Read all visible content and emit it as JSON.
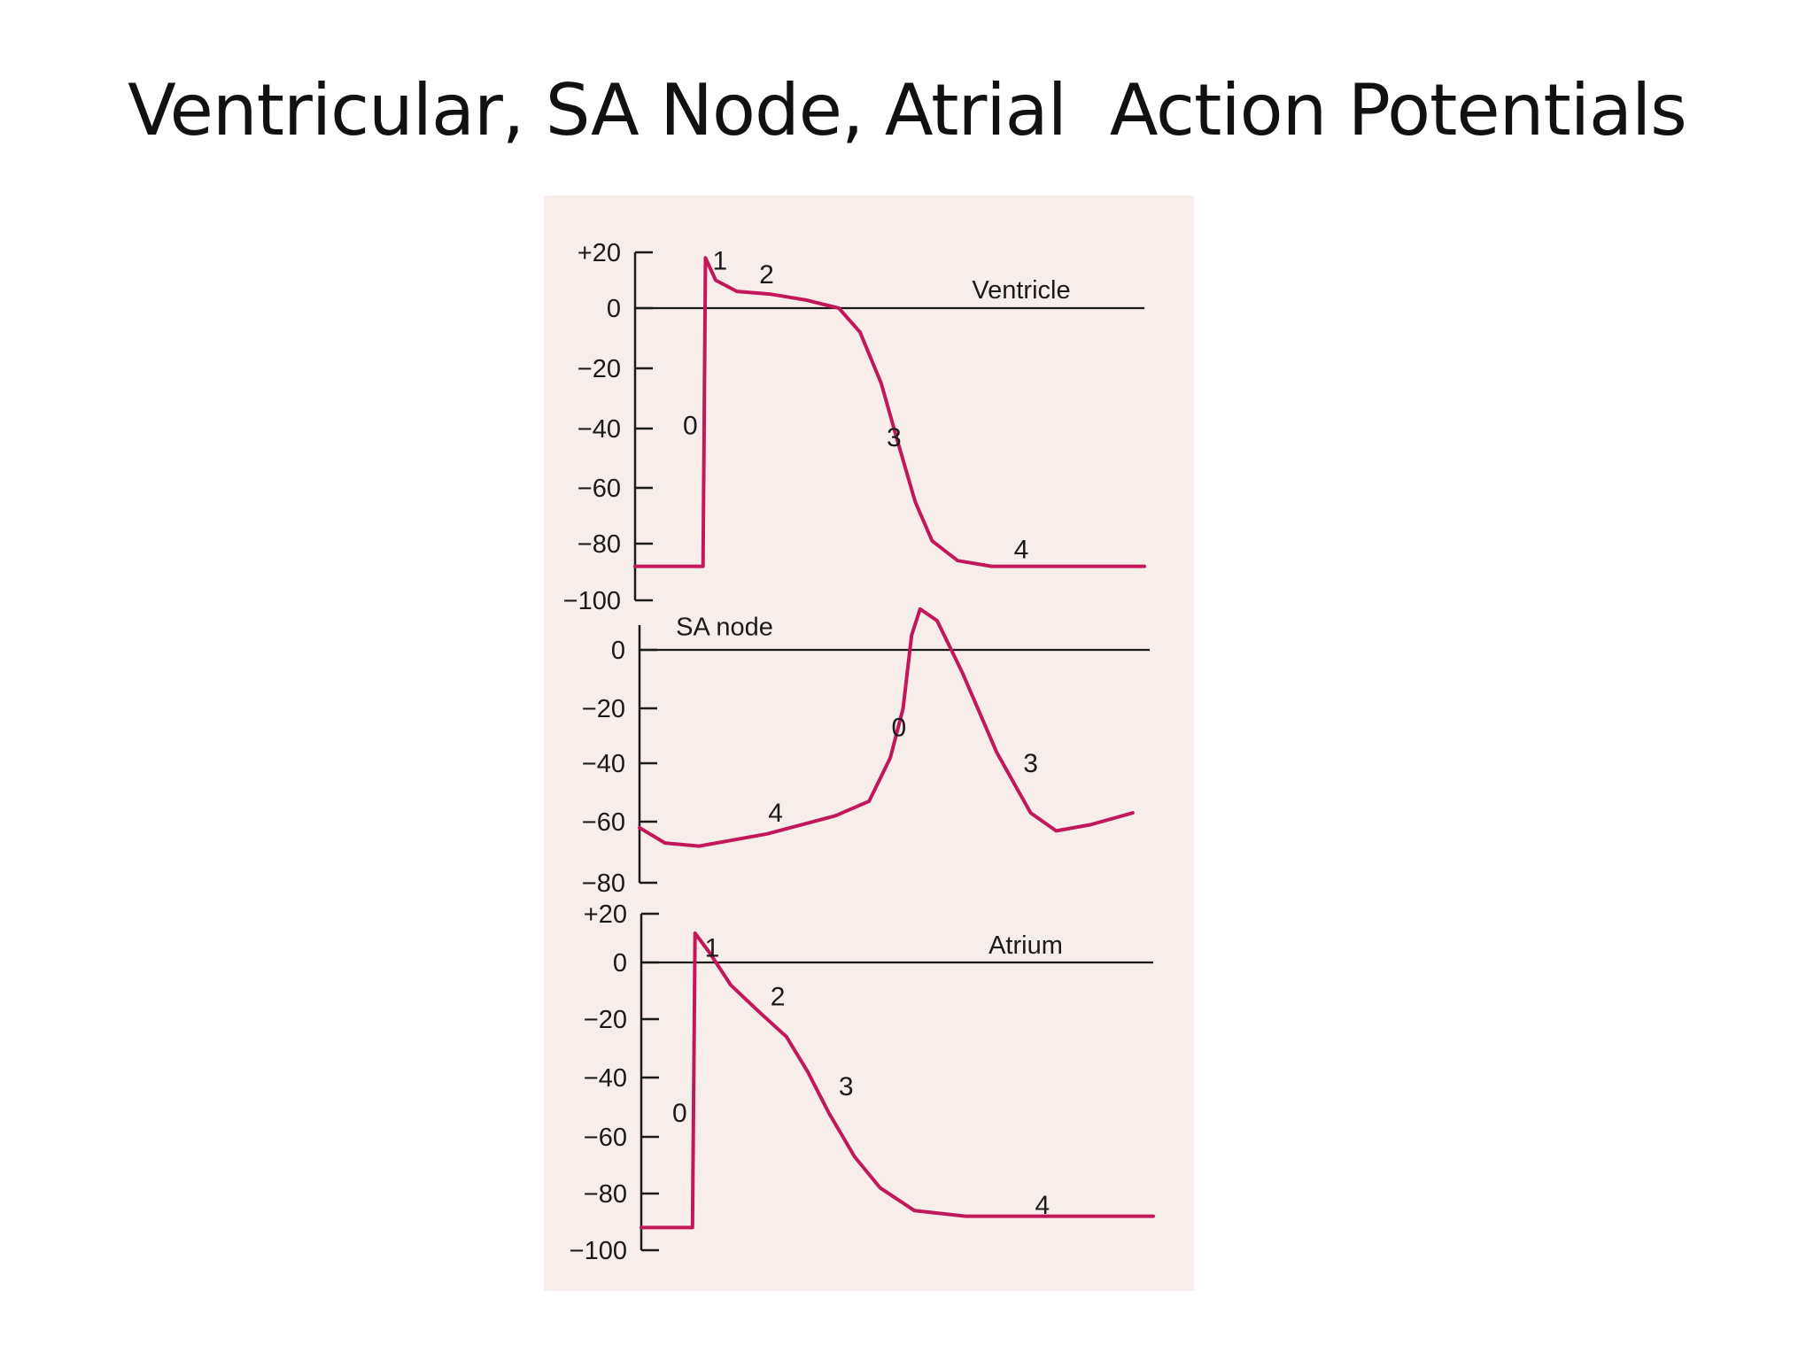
{
  "slide": {
    "title": "Ventricular, SA Node, Atrial  Action Potentials"
  },
  "colors": {
    "trace": "#c2185b",
    "axis": "#1a1a1a",
    "paper": "#f7eeeb"
  },
  "chart_data": [
    {
      "type": "line",
      "name": "Ventricle",
      "ylim": [
        -100,
        20
      ],
      "y_ticks": [
        20,
        0,
        -20,
        -40,
        -60,
        -80,
        -100
      ],
      "y_tick_labels": [
        "+20",
        "0",
        "−20",
        "−40",
        "−60",
        "−80",
        "−100"
      ],
      "zero_line": true,
      "series": [
        {
          "values": [
            [
              0,
              -88
            ],
            [
              8,
              -88
            ],
            [
              8.3,
              18
            ],
            [
              9.5,
              10
            ],
            [
              12,
              6
            ],
            [
              16,
              5
            ],
            [
              20,
              3
            ],
            [
              24,
              0
            ],
            [
              26.5,
              -8
            ],
            [
              29,
              -25
            ],
            [
              31,
              -45
            ],
            [
              33,
              -65
            ],
            [
              35,
              -79
            ],
            [
              38,
              -86
            ],
            [
              42,
              -88
            ],
            [
              60,
              -88
            ]
          ]
        }
      ],
      "phase_labels": [
        {
          "text": "0",
          "x": 6.5,
          "y": -39
        },
        {
          "text": "1",
          "x": 10,
          "y": 17
        },
        {
          "text": "2",
          "x": 15.5,
          "y": 12
        },
        {
          "text": "3",
          "x": 30.5,
          "y": -43
        },
        {
          "text": "4",
          "x": 45.5,
          "y": -82
        }
      ]
    },
    {
      "type": "line",
      "name": "SA node",
      "ylim": [
        -80,
        10
      ],
      "y_ticks": [
        0,
        -20,
        -40,
        -60,
        -80
      ],
      "y_tick_labels": [
        "0",
        "−20",
        "−40",
        "−60",
        "−80"
      ],
      "zero_line": true,
      "series": [
        {
          "values": [
            [
              0,
              -62
            ],
            [
              3,
              -67
            ],
            [
              7,
              -68
            ],
            [
              15,
              -64
            ],
            [
              23,
              -58
            ],
            [
              27,
              -53
            ],
            [
              29.5,
              -38
            ],
            [
              31,
              -20
            ],
            [
              32,
              5
            ],
            [
              33,
              14
            ],
            [
              35,
              10
            ],
            [
              38,
              -8
            ],
            [
              42,
              -36
            ],
            [
              46,
              -57
            ],
            [
              49,
              -63
            ],
            [
              53,
              -61
            ],
            [
              58,
              -57
            ]
          ]
        }
      ],
      "phase_labels": [
        {
          "text": "SA node",
          "x": 10,
          "y": 8
        },
        {
          "text": "0",
          "x": 30.5,
          "y": -27
        },
        {
          "text": "3",
          "x": 46,
          "y": -40
        },
        {
          "text": "4",
          "x": 16,
          "y": -57
        }
      ]
    },
    {
      "type": "line",
      "name": "Atrium",
      "ylim": [
        -100,
        20
      ],
      "y_ticks": [
        20,
        0,
        -20,
        -40,
        -60,
        -80,
        -100
      ],
      "y_tick_labels": [
        "+20",
        "0",
        "−20",
        "−40",
        "−60",
        "−80",
        "−100"
      ],
      "zero_line": true,
      "series": [
        {
          "values": [
            [
              0,
              -92
            ],
            [
              6,
              -92
            ],
            [
              6.3,
              12
            ],
            [
              8,
              4
            ],
            [
              10.5,
              -8
            ],
            [
              14,
              -18
            ],
            [
              17,
              -26
            ],
            [
              19.5,
              -38
            ],
            [
              22,
              -52
            ],
            [
              25,
              -67
            ],
            [
              28,
              -78
            ],
            [
              32,
              -86
            ],
            [
              38,
              -88
            ],
            [
              60,
              -88
            ]
          ]
        }
      ],
      "phase_labels": [
        {
          "text": "0",
          "x": 4.5,
          "y": -52
        },
        {
          "text": "1",
          "x": 8.3,
          "y": 6
        },
        {
          "text": "2",
          "x": 16,
          "y": -12
        },
        {
          "text": "3",
          "x": 24,
          "y": -43
        },
        {
          "text": "4",
          "x": 47,
          "y": -84
        }
      ]
    }
  ]
}
